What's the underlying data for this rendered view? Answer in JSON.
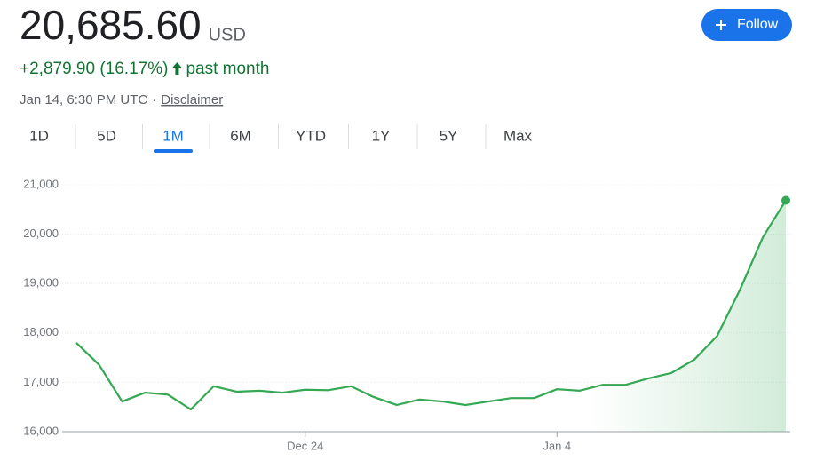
{
  "header": {
    "price": "20,685.60",
    "currency": "USD",
    "change": "+2,879.90 (16.17%)",
    "period": "past month",
    "timestamp": "Jan 14, 6:30 PM UTC",
    "separator": "·",
    "disclaimer": "Disclaimer",
    "follow": "Follow",
    "tabs": [
      "1D",
      "5D",
      "1M",
      "6M",
      "YTD",
      "1Y",
      "5Y",
      "Max"
    ],
    "selected_tab": 2
  },
  "chart_data": {
    "type": "line",
    "categories": [
      null,
      null,
      null,
      null,
      null,
      null,
      null,
      null,
      null,
      null,
      "Dec 24",
      null,
      null,
      null,
      null,
      null,
      null,
      null,
      null,
      null,
      null,
      "Jan 4",
      null,
      null,
      null,
      null,
      null,
      null,
      null,
      null,
      null,
      null
    ],
    "series": [
      {
        "color": "#34a853",
        "values": [
          17800,
          17350,
          16610,
          16790,
          16750,
          16450,
          16920,
          16810,
          16830,
          16790,
          16850,
          16840,
          16920,
          16700,
          16540,
          16650,
          16610,
          16540,
          16610,
          16680,
          16680,
          16860,
          16830,
          16950,
          16950,
          17080,
          17190,
          17460,
          17940,
          18880,
          19940,
          20685.6
        ]
      }
    ],
    "ylim": [
      16000,
      21000
    ],
    "yticks": [
      {
        "value": 16000,
        "label": "16,000"
      },
      {
        "value": 17000,
        "label": "17,000"
      },
      {
        "value": 18000,
        "label": "18,000"
      },
      {
        "value": 19000,
        "label": "19,000"
      },
      {
        "value": 20000,
        "label": "20,000"
      },
      {
        "value": 21000,
        "label": "21,000"
      }
    ],
    "grid": true
  }
}
